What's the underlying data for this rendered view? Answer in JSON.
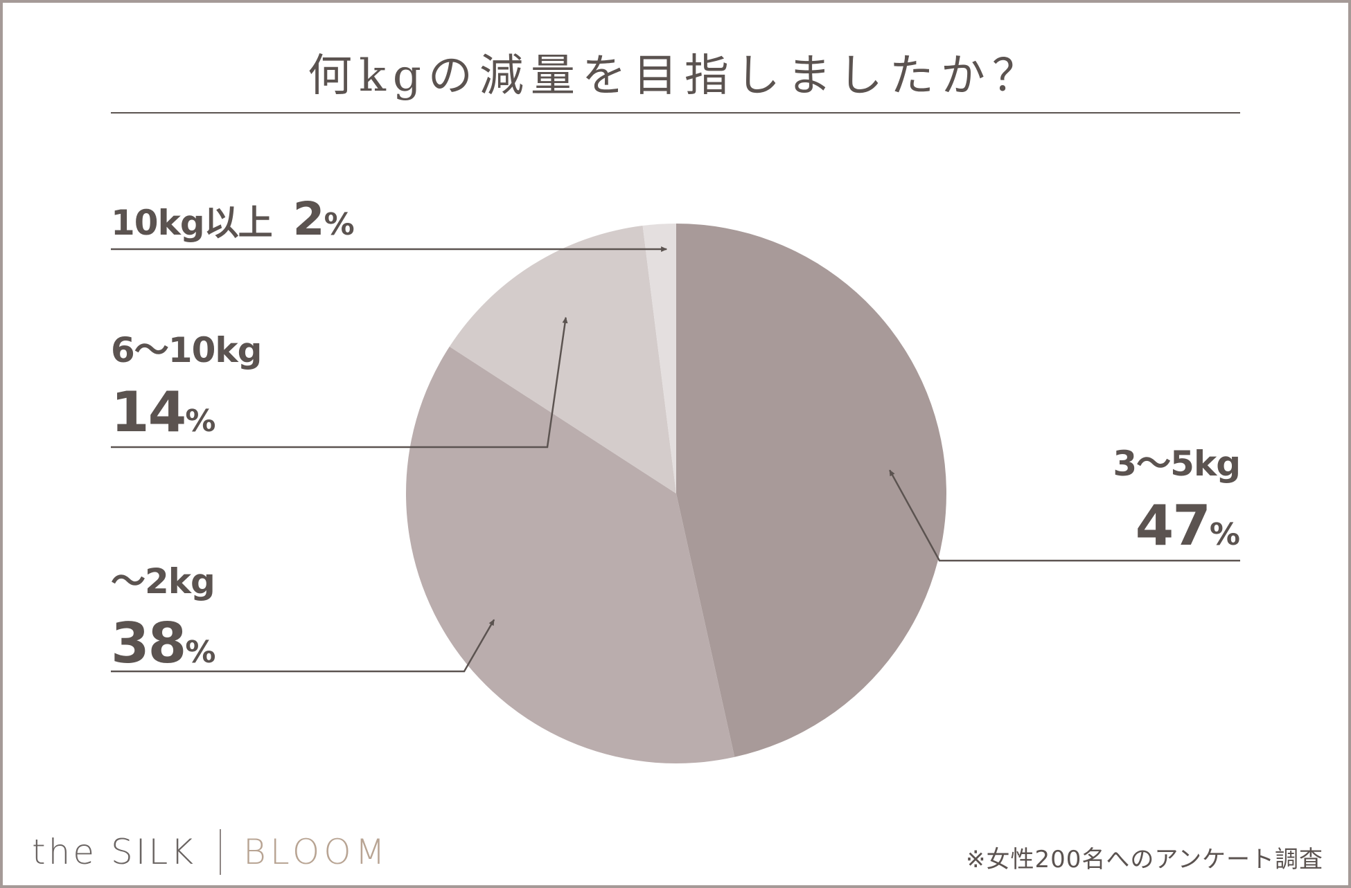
{
  "title": "何kgの減量を目指しましたか？",
  "chart_data": {
    "type": "pie",
    "title": "何kgの減量を目指しましたか？",
    "slices": [
      {
        "label": "3〜5kg",
        "value": 47,
        "value_text": "47",
        "color": "#a89a99"
      },
      {
        "label": "〜2kg",
        "value": 38,
        "value_text": "38",
        "color": "#baadad"
      },
      {
        "label": "6〜10kg",
        "value": 14,
        "value_text": "14",
        "color": "#d4cccb"
      },
      {
        "label": "10kg以上",
        "value": 2,
        "value_text": "2",
        "color": "#e4dfdf"
      }
    ],
    "unit": "%",
    "start": "12 o'clock",
    "direction": "clockwise"
  },
  "footer": {
    "brand_left": "the SILK",
    "brand_right": "BLOOM",
    "note": "※女性200名へのアンケート調査"
  },
  "colors": {
    "text": "#5b5350",
    "frame": "#a59a97",
    "brand_accent": "#b8a493"
  }
}
